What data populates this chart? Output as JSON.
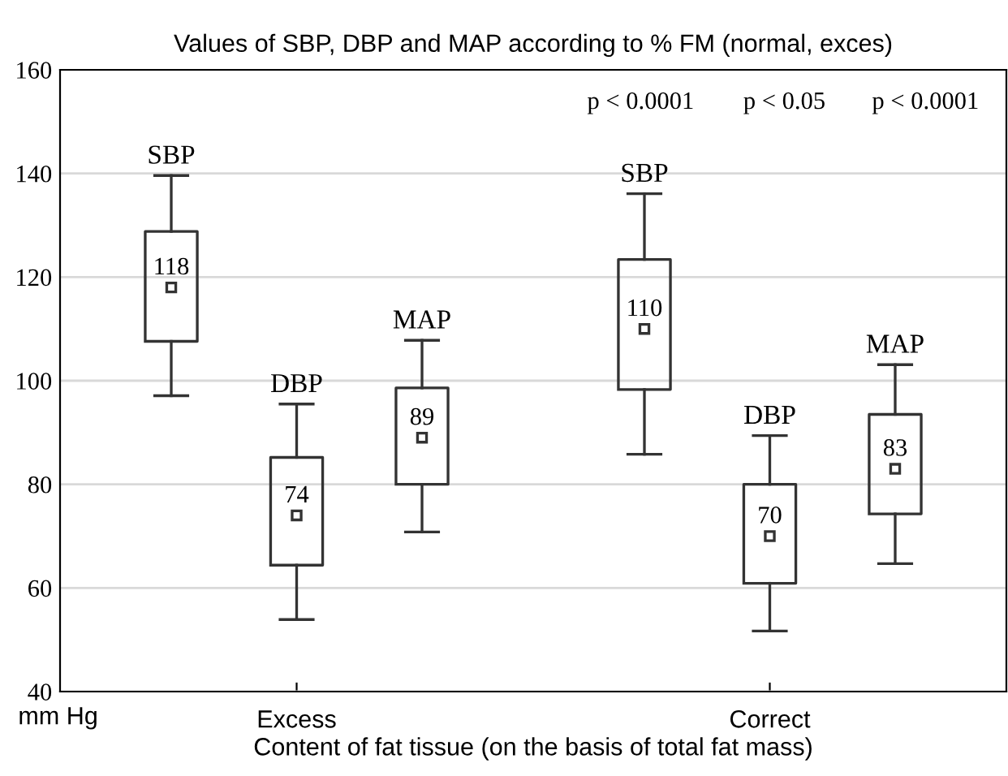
{
  "chart_data": {
    "type": "box",
    "title": "Values of SBP, DBP and MAP according to % FM (normal, exces)",
    "xlabel": "Content of fat tissue (on the basis of total fat mass)",
    "categories": [
      "Excess",
      "Correct"
    ],
    "series": [
      {
        "name": "SBP",
        "color": "#333333",
        "value_labels": [
          "118",
          "110"
        ],
        "boxes": [
          {
            "low": 97.1,
            "q1": 107.6,
            "q3": 128.8,
            "high": 139.6,
            "mean": 118
          },
          {
            "low": 85.8,
            "q1": 98.3,
            "q3": 123.4,
            "high": 136.1,
            "mean": 110
          }
        ]
      },
      {
        "name": "DBP",
        "color": "#333333",
        "value_labels": [
          "74",
          "70"
        ],
        "boxes": [
          {
            "low": 53.9,
            "q1": 64.4,
            "q3": 85.2,
            "high": 95.5,
            "mean": 74
          },
          {
            "low": 51.7,
            "q1": 60.9,
            "q3": 80,
            "high": 89.4,
            "mean": 70
          }
        ]
      },
      {
        "name": "MAP",
        "color": "#333333",
        "value_labels": [
          "89",
          "83"
        ],
        "boxes": [
          {
            "low": 70.8,
            "q1": 80,
            "q3": 98.6,
            "high": 107.8,
            "mean": 89
          },
          {
            "low": 64.7,
            "q1": 74.3,
            "q3": 93.5,
            "high": 103.1,
            "mean": 83
          }
        ]
      }
    ],
    "ylim": [
      40,
      160
    ],
    "yticks": [
      40,
      60,
      80,
      100,
      120,
      140,
      160
    ],
    "grid": "y",
    "legend": false,
    "annotations": [
      "p < 0.0001",
      "p < 0.05",
      "p < 0.0001",
      "mm Hg"
    ]
  }
}
